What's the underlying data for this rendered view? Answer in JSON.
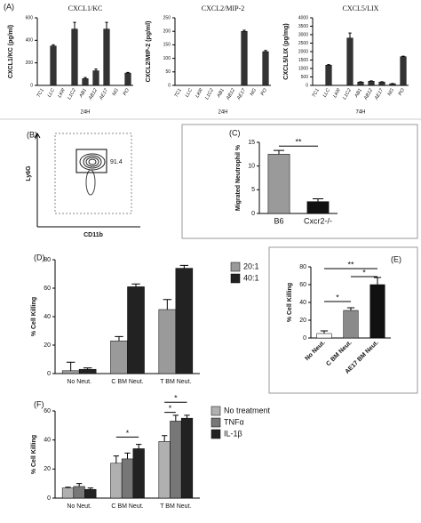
{
  "chart_data": [
    {
      "type": "bar",
      "panel": "(A)",
      "title": "CXCL1/KC",
      "ylabel": "CXCL1/KC (pg/ml)",
      "xlabel": "24H",
      "categories": [
        "TC1",
        "LLC",
        "LKR",
        "L1C2",
        "AB1",
        "AB12",
        "AE17",
        "NG",
        "PO"
      ],
      "values": [
        0,
        350,
        0,
        500,
        60,
        130,
        500,
        0,
        110
      ],
      "errors": [
        0,
        10,
        0,
        60,
        10,
        15,
        60,
        0,
        5
      ],
      "color": "#333333",
      "ylim": [
        0,
        600
      ],
      "yticks": [
        0,
        200,
        400,
        600
      ]
    },
    {
      "type": "bar",
      "title": "CXCL2/MIP-2",
      "ylabel": "CXCL2/MIP-2 (pg/ml)",
      "xlabel": "24H",
      "categories": [
        "TC1",
        "LLC",
        "LKR",
        "L1C2",
        "AB1",
        "AB12",
        "AE17",
        "NG",
        "PO"
      ],
      "values": [
        0,
        0,
        0,
        0,
        0,
        0,
        200,
        0,
        125
      ],
      "errors": [
        0,
        0,
        0,
        0,
        0,
        0,
        4,
        0,
        4
      ],
      "color": "#333333",
      "ylim": [
        0,
        250
      ],
      "yticks": [
        0,
        50,
        100,
        150,
        200,
        250
      ]
    },
    {
      "type": "bar",
      "title": "CXCL5/LIX",
      "ylabel": "CXCL5/LIX (pg/mg)",
      "xlabel": "74H",
      "categories": [
        "TC1",
        "LLC",
        "LKR",
        "L1C2",
        "AB1",
        "AB12",
        "AE17",
        "NG",
        "PO"
      ],
      "values": [
        0,
        1200,
        0,
        2800,
        200,
        250,
        200,
        100,
        1700
      ],
      "errors": [
        0,
        30,
        0,
        300,
        20,
        20,
        20,
        10,
        30
      ],
      "color": "#333333",
      "ylim": [
        0,
        4000
      ],
      "yticks": [
        0,
        500,
        1000,
        1500,
        2000,
        2500,
        3000,
        3500,
        4000
      ]
    },
    {
      "type": "flow",
      "panel": "(B)",
      "xlabel": "CD11b",
      "ylabel": "Ly6G",
      "gate_percent": 91.4
    },
    {
      "type": "bar",
      "panel": "(C)",
      "ylabel": "Migrated Neutrophil %",
      "categories": [
        "B6",
        "Cxcr2-/-"
      ],
      "values": [
        12.5,
        2.5
      ],
      "errors": [
        0.8,
        0.6
      ],
      "colors": [
        "#9a9a9a",
        "#111111"
      ],
      "ylim": [
        0,
        15
      ],
      "yticks": [
        0,
        5,
        10,
        15
      ],
      "significance": [
        "**"
      ]
    },
    {
      "type": "bar",
      "panel": "(D)",
      "ylabel": "% Cell Killing",
      "categories": [
        "No Neut.",
        "C BM Neut.",
        "T BM Neut."
      ],
      "series": [
        {
          "name": "20:1",
          "color": "#9a9a9a",
          "values": [
            2,
            23,
            45
          ],
          "errors": [
            6,
            3,
            7
          ]
        },
        {
          "name": "40:1",
          "color": "#222222",
          "values": [
            3,
            61,
            74
          ],
          "errors": [
            1,
            2,
            2
          ]
        }
      ],
      "ylim": [
        0,
        80
      ],
      "yticks": [
        0,
        20,
        40,
        60,
        80
      ]
    },
    {
      "type": "bar",
      "panel": "(E)",
      "ylabel": "% Cell Killing",
      "categories": [
        "No Neut.",
        "C BM Neut.",
        "AE17 BM Neut."
      ],
      "values": [
        5,
        31,
        60
      ],
      "errors": [
        3,
        3,
        8
      ],
      "colors": [
        "#ffffff",
        "#8a8a8a",
        "#111111"
      ],
      "ylim": [
        0,
        80
      ],
      "yticks": [
        0,
        20,
        40,
        60,
        80
      ],
      "significance": [
        "*",
        "*",
        "**"
      ]
    },
    {
      "type": "bar",
      "panel": "(F)",
      "ylabel": "% Cell Killing",
      "categories": [
        "No Neut.",
        "C BM Neut.",
        "T BM Neut."
      ],
      "series": [
        {
          "name": "No treatment",
          "color": "#b0b0b0",
          "values": [
            7,
            24,
            39
          ],
          "errors": [
            0.5,
            5,
            4
          ]
        },
        {
          "name": "TNFα",
          "color": "#777777",
          "values": [
            8,
            27,
            53
          ],
          "errors": [
            2,
            4,
            4
          ]
        },
        {
          "name": "IL-1β",
          "color": "#222222",
          "values": [
            6,
            34,
            55
          ],
          "errors": [
            1,
            3,
            2
          ]
        }
      ],
      "ylim": [
        0,
        60
      ],
      "yticks": [
        0,
        20,
        40,
        60
      ],
      "significance": [
        "*",
        "*",
        "*"
      ]
    }
  ]
}
